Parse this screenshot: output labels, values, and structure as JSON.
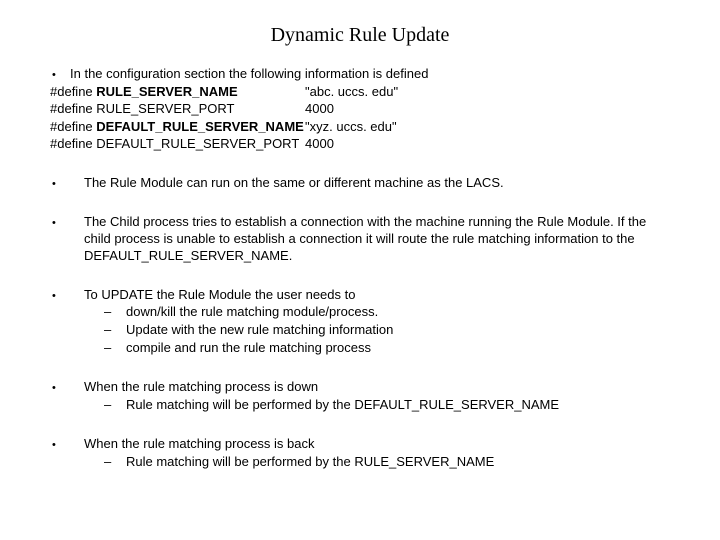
{
  "title": "Dynamic Rule Update",
  "intro": "In the configuration section the following information is defined",
  "defines": [
    {
      "key_prefix": "#define ",
      "key_bold": "RULE_SERVER_NAME",
      "key_suffix": "",
      "value": "\"abc. uccs. edu\""
    },
    {
      "key_prefix": "#define RULE_SERVER_PORT",
      "key_bold": "",
      "key_suffix": "",
      "value": "4000"
    },
    {
      "key_prefix": "#define ",
      "key_bold": "DEFAULT_RULE_SERVER_NAME",
      "key_suffix": "",
      "value": "\"xyz. uccs. edu\""
    },
    {
      "key_prefix": "#define DEFAULT_RULE_SERVER_PORT",
      "key_bold": "",
      "key_suffix": "",
      "value": "4000"
    }
  ],
  "items": [
    {
      "text": "The Rule Module can run on the same or different machine as the LACS.",
      "subs": []
    },
    {
      "text": "The Child process tries to establish a connection with the machine running the Rule Module. If the child process is unable to establish a connection it will route the rule matching information to the DEFAULT_RULE_SERVER_NAME.",
      "subs": []
    },
    {
      "text": "To UPDATE the Rule Module the user needs to",
      "subs": [
        "down/kill the rule matching module/process.",
        "Update with the new  rule matching information",
        "compile and run the rule matching process"
      ]
    },
    {
      "text": "When the rule matching process is down",
      "subs": [
        "Rule matching will be performed by the DEFAULT_RULE_SERVER_NAME"
      ]
    },
    {
      "text": "When the rule matching process is back",
      "subs": [
        "Rule matching will be performed by the RULE_SERVER_NAME"
      ]
    }
  ]
}
